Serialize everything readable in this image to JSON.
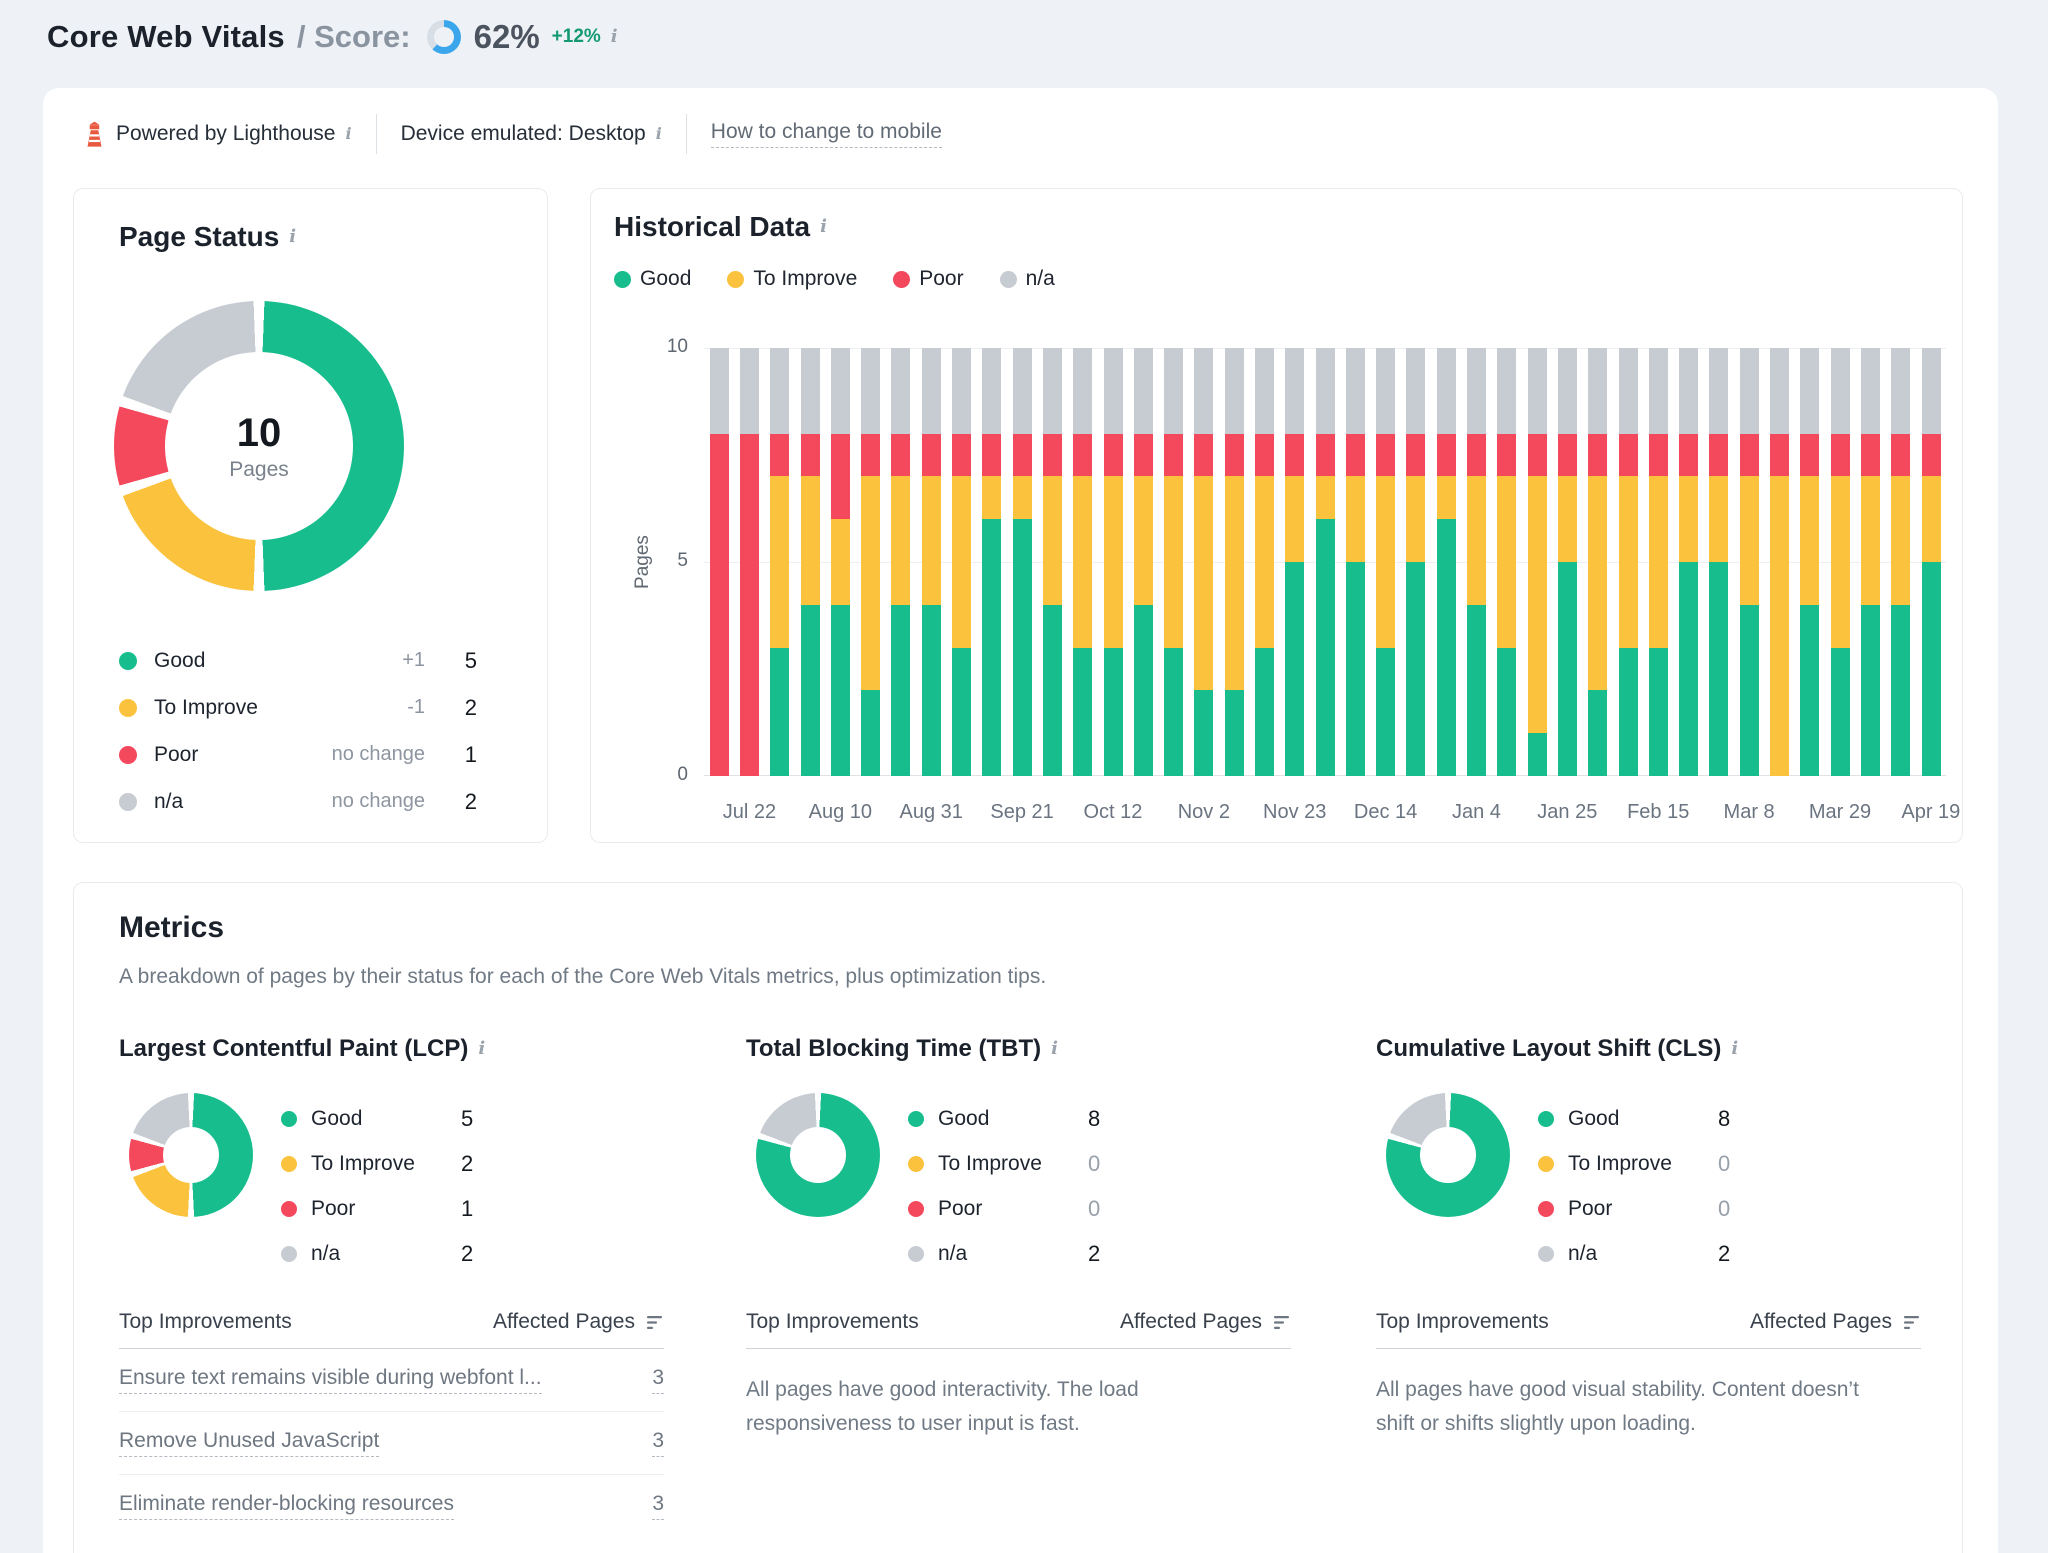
{
  "colors": {
    "good": "#17bd8d",
    "to_improve": "#fac23d",
    "poor": "#f4485d",
    "na": "#c7ccd3",
    "accent_blue": "#3ba6ec",
    "ring_rest": "#d7dee6",
    "delta_green": "#149a70"
  },
  "header": {
    "title": "Core Web Vitals",
    "score_prefix": "/ Score:",
    "score_value": "62%",
    "score_delta": "+12%",
    "score_percent": 62
  },
  "toolbar": {
    "powered_by": "Powered by Lighthouse",
    "device_label": "Device emulated: Desktop",
    "mobile_link": "How to change to mobile"
  },
  "page_status": {
    "title": "Page Status",
    "center_value": "10",
    "center_label": "Pages",
    "legend": [
      {
        "key": "good",
        "label": "Good",
        "delta": "+1",
        "value": "5"
      },
      {
        "key": "to_improve",
        "label": "To Improve",
        "delta": "-1",
        "value": "2"
      },
      {
        "key": "poor",
        "label": "Poor",
        "delta": "no change",
        "value": "1"
      },
      {
        "key": "na",
        "label": "n/a",
        "delta": "no change",
        "value": "2"
      }
    ]
  },
  "historical": {
    "title": "Historical Data",
    "legend": [
      {
        "key": "good",
        "label": "Good"
      },
      {
        "key": "to_improve",
        "label": "To Improve"
      },
      {
        "key": "poor",
        "label": "Poor"
      },
      {
        "key": "na",
        "label": "n/a"
      }
    ],
    "ylabel": "Pages",
    "yticks": [
      "10",
      "5",
      "0"
    ]
  },
  "metrics": {
    "title": "Metrics",
    "subtitle": "A breakdown of pages by their status for each of the Core Web Vitals metrics, plus optimization tips.",
    "improvements_header": "Top Improvements",
    "affected_header": "Affected Pages",
    "cards": [
      {
        "title": "Largest Contentful Paint (LCP)",
        "legend": [
          {
            "key": "good",
            "label": "Good",
            "value": "5"
          },
          {
            "key": "to_improve",
            "label": "To Improve",
            "value": "2"
          },
          {
            "key": "poor",
            "label": "Poor",
            "value": "1"
          },
          {
            "key": "na",
            "label": "n/a",
            "value": "2"
          }
        ],
        "rows": [
          {
            "text": "Ensure text remains visible during webfont l...",
            "value": "3"
          },
          {
            "text": "Remove Unused JavaScript",
            "value": "3"
          },
          {
            "text": "Eliminate render-blocking resources",
            "value": "3"
          }
        ],
        "message": ""
      },
      {
        "title": "Total Blocking Time (TBT)",
        "legend": [
          {
            "key": "good",
            "label": "Good",
            "value": "8"
          },
          {
            "key": "to_improve",
            "label": "To Improve",
            "value": "0"
          },
          {
            "key": "poor",
            "label": "Poor",
            "value": "0"
          },
          {
            "key": "na",
            "label": "n/a",
            "value": "2"
          }
        ],
        "rows": [],
        "message": "All pages have good interactivity. The load responsiveness to user input is fast."
      },
      {
        "title": "Cumulative Layout Shift (CLS)",
        "legend": [
          {
            "key": "good",
            "label": "Good",
            "value": "8"
          },
          {
            "key": "to_improve",
            "label": "To Improve",
            "value": "0"
          },
          {
            "key": "poor",
            "label": "Poor",
            "value": "0"
          },
          {
            "key": "na",
            "label": "n/a",
            "value": "2"
          }
        ],
        "rows": [],
        "message": "All pages have good visual stability. Content doesn’t shift or shifts slightly upon loading."
      }
    ]
  },
  "chart_data": [
    {
      "id": "score_ring",
      "type": "pie",
      "title": "Core Web Vitals Score",
      "labels": [
        "score",
        "remainder"
      ],
      "values": [
        62,
        38
      ]
    },
    {
      "id": "page_status_donut",
      "type": "pie",
      "title": "Page Status",
      "labels": [
        "Good",
        "To Improve",
        "Poor",
        "n/a"
      ],
      "keys": [
        "good",
        "to_improve",
        "poor",
        "na"
      ],
      "values": [
        5,
        2,
        1,
        2
      ],
      "center_text": "10 Pages"
    },
    {
      "id": "historical_stacked_bars",
      "type": "bar",
      "stacked": true,
      "title": "Historical Data",
      "xlabel": "",
      "ylabel": "Pages",
      "ylim": [
        0,
        10
      ],
      "grid": true,
      "legend_position": "top",
      "x_tick_positions": [
        1,
        4,
        7,
        10,
        13,
        16,
        19,
        22,
        25,
        28,
        31,
        34,
        37,
        40
      ],
      "x_tick_labels": [
        "Jul 22",
        "Aug 10",
        "Aug 31",
        "Sep 21",
        "Oct 12",
        "Nov 2",
        "Nov 23",
        "Dec 14",
        "Jan 4",
        "Jan 25",
        "Feb 15",
        "Mar 8",
        "Mar 29",
        "Apr 19"
      ],
      "series": [
        {
          "name": "Good",
          "key": "good",
          "values": [
            0,
            0,
            3,
            4,
            4,
            2,
            4,
            4,
            3,
            6,
            6,
            4,
            3,
            3,
            4,
            3,
            2,
            2,
            3,
            5,
            6,
            5,
            3,
            5,
            6,
            4,
            3,
            1,
            5,
            2,
            3,
            3,
            5,
            5,
            4,
            0,
            4,
            3,
            4,
            4,
            5
          ]
        },
        {
          "name": "To Improve",
          "key": "to_improve",
          "values": [
            0,
            0,
            4,
            3,
            2,
            5,
            3,
            3,
            4,
            1,
            1,
            3,
            4,
            4,
            3,
            4,
            5,
            5,
            4,
            2,
            1,
            2,
            4,
            2,
            1,
            3,
            4,
            6,
            2,
            5,
            4,
            4,
            2,
            2,
            3,
            7,
            3,
            4,
            3,
            3,
            2
          ]
        },
        {
          "name": "Poor",
          "key": "poor",
          "values": [
            8,
            8,
            1,
            1,
            2,
            1,
            1,
            1,
            1,
            1,
            1,
            1,
            1,
            1,
            1,
            1,
            1,
            1,
            1,
            1,
            1,
            1,
            1,
            1,
            1,
            1,
            1,
            1,
            1,
            1,
            1,
            1,
            1,
            1,
            1,
            1,
            1,
            1,
            1,
            1,
            1
          ]
        },
        {
          "name": "n/a",
          "key": "na",
          "values": [
            2,
            2,
            2,
            2,
            2,
            2,
            2,
            2,
            2,
            2,
            2,
            2,
            2,
            2,
            2,
            2,
            2,
            2,
            2,
            2,
            2,
            2,
            2,
            2,
            2,
            2,
            2,
            2,
            2,
            2,
            2,
            2,
            2,
            2,
            2,
            2,
            2,
            2,
            2,
            2,
            2
          ]
        }
      ]
    },
    {
      "id": "lcp_donut",
      "type": "pie",
      "title": "Largest Contentful Paint (LCP)",
      "labels": [
        "Good",
        "To Improve",
        "Poor",
        "n/a"
      ],
      "keys": [
        "good",
        "to_improve",
        "poor",
        "na"
      ],
      "values": [
        5,
        2,
        1,
        2
      ]
    },
    {
      "id": "tbt_donut",
      "type": "pie",
      "title": "Total Blocking Time (TBT)",
      "labels": [
        "Good",
        "To Improve",
        "Poor",
        "n/a"
      ],
      "keys": [
        "good",
        "to_improve",
        "poor",
        "na"
      ],
      "values": [
        8,
        0,
        0,
        2
      ]
    },
    {
      "id": "cls_donut",
      "type": "pie",
      "title": "Cumulative Layout Shift (CLS)",
      "labels": [
        "Good",
        "To Improve",
        "Poor",
        "n/a"
      ],
      "keys": [
        "good",
        "to_improve",
        "poor",
        "na"
      ],
      "values": [
        8,
        0,
        0,
        2
      ]
    }
  ]
}
